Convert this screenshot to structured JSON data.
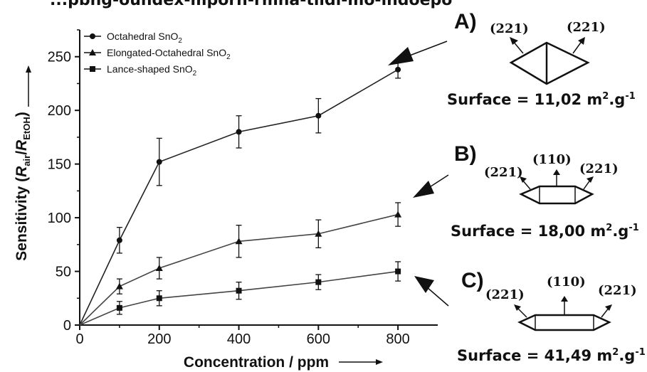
{
  "banner_text": "...pbng-oundex-mporn-rmna-tiidi-mo-indoepo",
  "chart_data": {
    "type": "line",
    "x": [
      0,
      100,
      200,
      400,
      600,
      800
    ],
    "xlim": [
      0,
      900
    ],
    "ylim": [
      0,
      275
    ],
    "xticks": [
      0,
      200,
      400,
      600,
      800
    ],
    "yticks": [
      0,
      50,
      100,
      150,
      200,
      250
    ],
    "xlabel": "Concentration / ppm",
    "ylabel_prefix": "Sensitivity (",
    "ylabel_num": "R",
    "ylabel_num_sub": "air",
    "ylabel_den": "R",
    "ylabel_den_sub": "EtOH",
    "ylabel_suffix": ")",
    "legend_position": "top-left",
    "series": [
      {
        "name": "Octahedral SnO",
        "name_sub": "2",
        "marker": "circle",
        "values": [
          0,
          79,
          152,
          180,
          195,
          238
        ],
        "errors": [
          0,
          12,
          22,
          15,
          16,
          8
        ]
      },
      {
        "name": "Elongated-Octahedral SnO",
        "name_sub": "2",
        "marker": "triangle",
        "values": [
          0,
          36,
          53,
          78,
          85,
          103
        ],
        "errors": [
          0,
          7,
          10,
          15,
          13,
          11
        ]
      },
      {
        "name": "Lance-shaped SnO",
        "name_sub": "2",
        "marker": "square",
        "values": [
          0,
          16,
          25,
          32,
          40,
          50
        ],
        "errors": [
          0,
          6,
          7,
          8,
          7,
          9
        ]
      }
    ]
  },
  "panels": [
    {
      "letter": "A)",
      "facets": [
        "(221)",
        "(221)"
      ],
      "surface_label": "Surface = 11,02 m",
      "surface_sup1": "2",
      "surface_mid": ".g",
      "surface_sup2": "-1"
    },
    {
      "letter": "B)",
      "facets": [
        "(221)",
        "(110)",
        "(221)"
      ],
      "surface_label": "Surface = 18,00 m",
      "surface_sup1": "2",
      "surface_mid": ".g",
      "surface_sup2": "-1"
    },
    {
      "letter": "C)",
      "facets": [
        "(221)",
        "(110)",
        "(221)"
      ],
      "surface_label": "Surface = 41,49 m",
      "surface_sup1": "2",
      "surface_mid": ".g",
      "surface_sup2": "-1"
    }
  ]
}
